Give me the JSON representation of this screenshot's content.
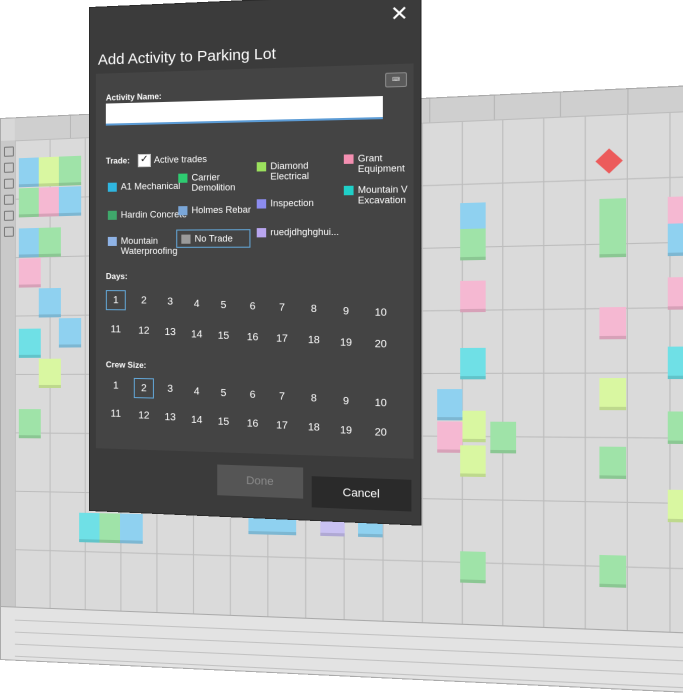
{
  "dialog": {
    "title": "Add Activity to Parking Lot",
    "close_icon": "close-icon",
    "activity_name_label": "Activity Name:",
    "activity_name_value": "",
    "keyboard_icon_text": "⌨",
    "trade_label": "Trade:",
    "active_trades_label": "Active trades",
    "active_trades_checked": true,
    "trades": [
      {
        "label": "A1 Mechanical",
        "color": "#2fb6e0"
      },
      {
        "label": "Carrier Demolition",
        "color": "#2ecc71"
      },
      {
        "label": "Diamond Electrical",
        "color": "#9be15d"
      },
      {
        "label": "Grant Equipment",
        "color": "#f48fb1"
      },
      {
        "label": "Hardin Concrete",
        "color": "#3fa86b"
      },
      {
        "label": "Holmes Rebar",
        "color": "#7aa6d8"
      },
      {
        "label": "Inspection",
        "color": "#8c8cf0"
      },
      {
        "label": "Mountain V Excavation",
        "color": "#1fd0c8"
      },
      {
        "label": "Mountain Waterproofing",
        "color": "#8fb3e6"
      },
      {
        "label": "No Trade",
        "color": "#9a9a9a"
      },
      {
        "label": "ruedjdhghghui...",
        "color": "#b9a6f0"
      }
    ],
    "selected_trade": "No Trade",
    "days_label": "Days:",
    "days_row1": [
      "1",
      "2",
      "3",
      "4",
      "5",
      "6",
      "7",
      "8",
      "9",
      "10"
    ],
    "days_row2": [
      "11",
      "12",
      "13",
      "14",
      "15",
      "16",
      "17",
      "18",
      "19",
      "20"
    ],
    "selected_day": "1",
    "crew_label": "Crew Size:",
    "crew_row1": [
      "1",
      "2",
      "3",
      "4",
      "5",
      "6",
      "7",
      "8",
      "9",
      "10"
    ],
    "crew_row2": [
      "11",
      "12",
      "13",
      "14",
      "15",
      "16",
      "17",
      "18",
      "19",
      "20"
    ],
    "selected_crew": "2",
    "done_label": "Done",
    "cancel_label": "Cancel"
  },
  "board": {
    "milestone_label": "",
    "sticky_colors": {
      "blue": "#8fd1f0",
      "green": "#9fe3a8",
      "lime": "#d9f7a1",
      "pink": "#f5b8d2",
      "cyan": "#6fe0e6",
      "purple": "#c9c1f2"
    }
  }
}
